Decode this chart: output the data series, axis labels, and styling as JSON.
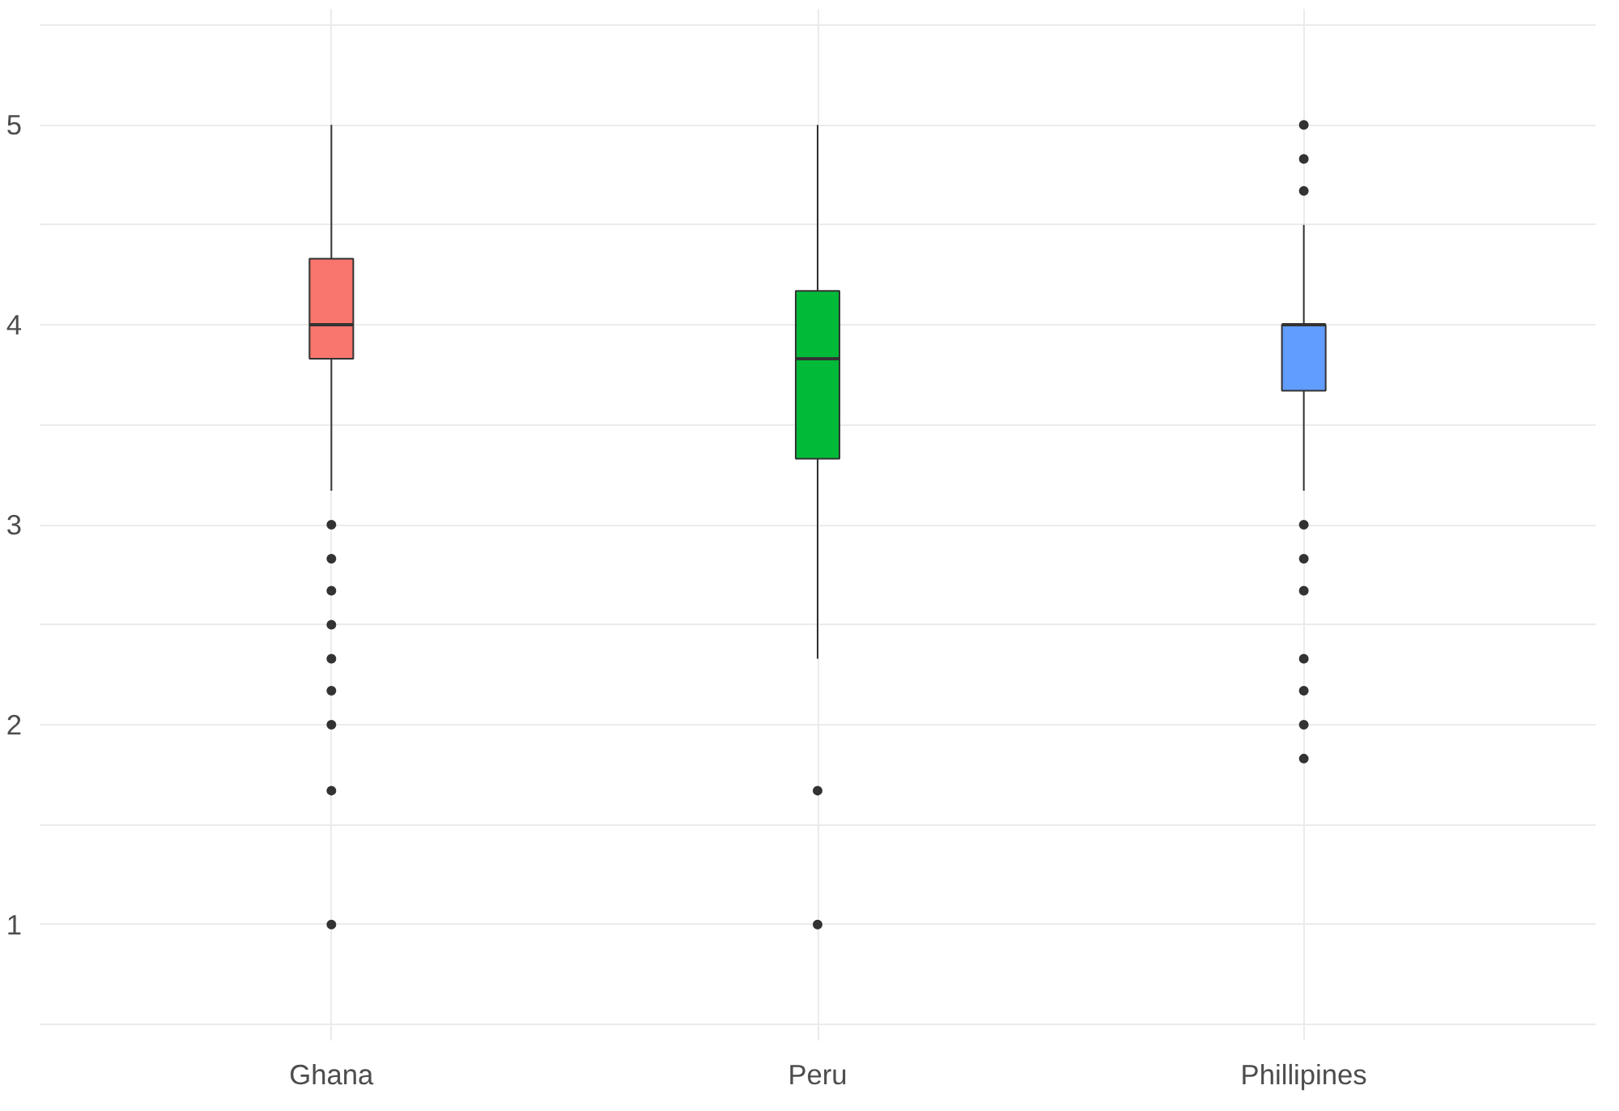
{
  "chart_data": {
    "type": "box",
    "categories": [
      "Ghana",
      "Peru",
      "Phillipines"
    ],
    "colors": [
      "#f8766d",
      "#00ba38",
      "#619cff"
    ],
    "boxes": [
      {
        "low": 3.17,
        "q1": 3.83,
        "median": 4,
        "q3": 4.33,
        "high": 5,
        "outliers": [
          3,
          2.83,
          2.67,
          2.5,
          2.33,
          2.17,
          2,
          1.67,
          1
        ]
      },
      {
        "low": 2.33,
        "q1": 3.33,
        "median": 3.83,
        "q3": 4.17,
        "high": 5,
        "outliers": [
          1.67,
          1
        ]
      },
      {
        "low": 3.17,
        "q1": 3.67,
        "median": 4,
        "q3": 4,
        "high": 4.5,
        "outliers": [
          4.67,
          4.83,
          5,
          3,
          2.83,
          2.67,
          2.33,
          2.17,
          2,
          1.83
        ]
      }
    ],
    "ylim": [
      0.42,
      5.58
    ],
    "yticks": [
      {
        "value": 0.5,
        "label": null
      },
      1,
      {
        "value": 1.5,
        "label": null
      },
      2,
      {
        "value": 2.5,
        "label": null
      },
      3,
      {
        "value": 3.5,
        "label": null
      },
      4,
      {
        "value": 4.5,
        "label": null
      },
      5,
      {
        "value": 5.5,
        "label": null
      }
    ],
    "grid": true
  }
}
